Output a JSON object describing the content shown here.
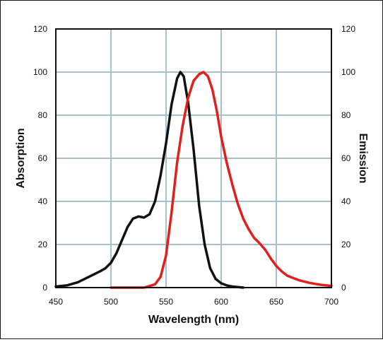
{
  "chart_data": {
    "type": "line",
    "xlabel": "Wavelength (nm)",
    "ylabel_left": "Absorption",
    "ylabel_right": "Emission",
    "xlim": [
      450,
      700
    ],
    "ylim": [
      0,
      120
    ],
    "x_ticks": [
      450,
      500,
      550,
      600,
      650,
      700
    ],
    "y_ticks": [
      0,
      20,
      40,
      60,
      80,
      100,
      120
    ],
    "grid": true,
    "series": [
      {
        "color": "#111111",
        "axis": "left",
        "points": [
          [
            450,
            0.5
          ],
          [
            460,
            1
          ],
          [
            470,
            2.5
          ],
          [
            480,
            5
          ],
          [
            490,
            7.5
          ],
          [
            495,
            9
          ],
          [
            500,
            11.5
          ],
          [
            505,
            16
          ],
          [
            510,
            22
          ],
          [
            515,
            28
          ],
          [
            520,
            32
          ],
          [
            525,
            33
          ],
          [
            530,
            32.5
          ],
          [
            535,
            34
          ],
          [
            540,
            40
          ],
          [
            545,
            52
          ],
          [
            550,
            67
          ],
          [
            555,
            85
          ],
          [
            560,
            97
          ],
          [
            563,
            100
          ],
          [
            566,
            98
          ],
          [
            570,
            86
          ],
          [
            575,
            64
          ],
          [
            580,
            38
          ],
          [
            585,
            20
          ],
          [
            590,
            9
          ],
          [
            595,
            4
          ],
          [
            600,
            2
          ],
          [
            605,
            1
          ],
          [
            610,
            0.5
          ],
          [
            620,
            0
          ]
        ]
      },
      {
        "color": "#e0201c",
        "axis": "right",
        "points": [
          [
            500,
            0
          ],
          [
            520,
            0
          ],
          [
            530,
            0
          ],
          [
            540,
            1.5
          ],
          [
            545,
            5
          ],
          [
            550,
            15
          ],
          [
            555,
            35
          ],
          [
            560,
            58
          ],
          [
            565,
            75
          ],
          [
            570,
            88
          ],
          [
            575,
            96
          ],
          [
            580,
            99
          ],
          [
            584,
            100
          ],
          [
            588,
            98
          ],
          [
            592,
            92
          ],
          [
            596,
            82
          ],
          [
            600,
            70
          ],
          [
            605,
            58
          ],
          [
            610,
            48
          ],
          [
            615,
            39
          ],
          [
            620,
            32
          ],
          [
            625,
            27
          ],
          [
            630,
            23
          ],
          [
            635,
            20.5
          ],
          [
            640,
            17.5
          ],
          [
            645,
            13.5
          ],
          [
            650,
            10
          ],
          [
            655,
            7.5
          ],
          [
            660,
            5.5
          ],
          [
            670,
            3.5
          ],
          [
            680,
            2.2
          ],
          [
            690,
            1.3
          ],
          [
            700,
            0.8
          ]
        ]
      }
    ]
  }
}
